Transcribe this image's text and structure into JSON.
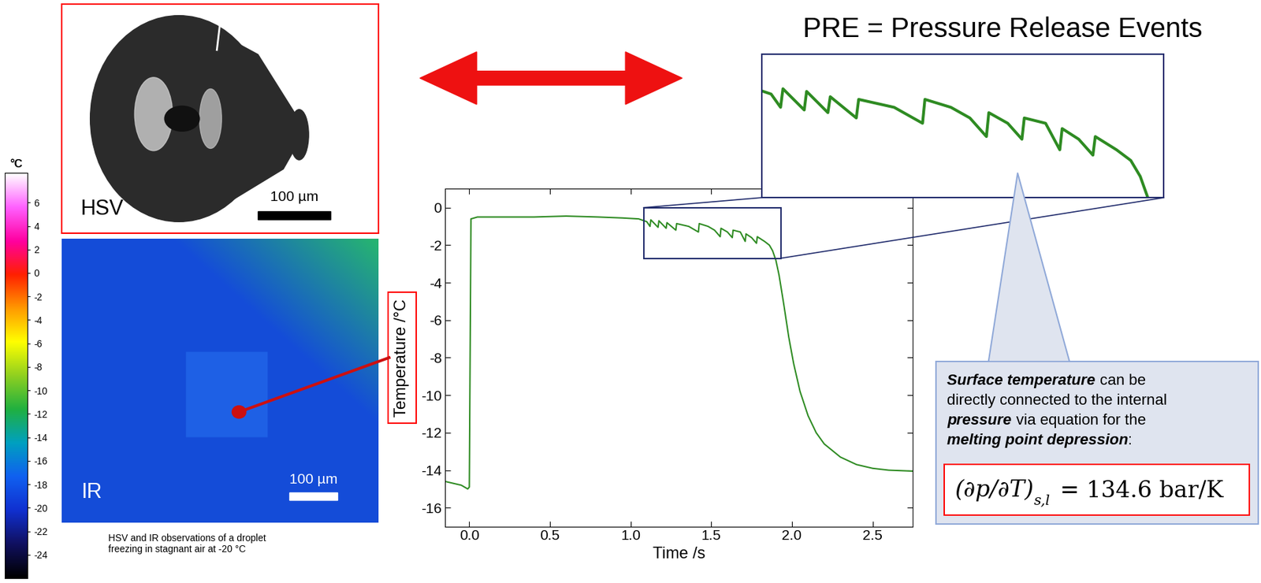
{
  "chart_data": {
    "type": "line",
    "x": [
      -0.15,
      -0.1,
      -0.05,
      -0.01,
      0.0,
      0.01,
      0.05,
      0.2,
      0.4,
      0.6,
      0.8,
      0.95,
      1.05,
      1.1,
      1.12,
      1.125,
      1.17,
      1.175,
      1.22,
      1.225,
      1.28,
      1.285,
      1.36,
      1.42,
      1.425,
      1.48,
      1.52,
      1.555,
      1.56,
      1.6,
      1.63,
      1.635,
      1.68,
      1.71,
      1.715,
      1.75,
      1.78,
      1.785,
      1.83,
      1.86,
      1.88,
      1.9,
      1.92,
      1.95,
      1.98,
      2.01,
      2.05,
      2.1,
      2.15,
      2.2,
      2.3,
      2.4,
      2.5,
      2.6,
      2.75
    ],
    "values": [
      -14.6,
      -14.7,
      -14.8,
      -15.0,
      -14.9,
      -0.6,
      -0.5,
      -0.5,
      -0.5,
      -0.45,
      -0.5,
      -0.55,
      -0.6,
      -0.75,
      -1.0,
      -0.65,
      -1.05,
      -0.7,
      -1.1,
      -0.8,
      -1.2,
      -0.85,
      -1.0,
      -1.3,
      -0.85,
      -1.0,
      -1.2,
      -1.55,
      -1.1,
      -1.3,
      -1.6,
      -1.2,
      -1.3,
      -1.8,
      -1.4,
      -1.6,
      -1.9,
      -1.55,
      -1.8,
      -2.0,
      -2.3,
      -2.8,
      -3.6,
      -5.2,
      -6.9,
      -8.3,
      -9.8,
      -11.1,
      -12.0,
      -12.6,
      -13.3,
      -13.7,
      -13.9,
      -14.0,
      -14.05
    ],
    "color": "#2e8b22",
    "xlabel": "Time /s",
    "ylabel": "Temperature /°C",
    "xlim": [
      -0.15,
      2.75
    ],
    "ylim": [
      -17,
      1
    ],
    "xticks": [
      {
        "value": 0,
        "label": "0.0"
      },
      {
        "value": 0.5,
        "label": "0.5"
      },
      {
        "value": 1,
        "label": "1.0"
      },
      {
        "value": 1.5,
        "label": "1.5"
      },
      {
        "value": 2,
        "label": "2.0"
      },
      {
        "value": 2.5,
        "label": "2.5"
      }
    ],
    "yticks": [
      0,
      -2,
      -4,
      -6,
      -8,
      -10,
      -12,
      -14,
      -16
    ]
  },
  "zoom": {
    "xlim": [
      1.08,
      1.93
    ],
    "ylim": [
      -2.7,
      0.0
    ]
  },
  "header": {
    "title": "PRE = Pressure Release Events"
  },
  "images": {
    "hsv": {
      "label": "HSV",
      "scale_bar": "100 µm"
    },
    "ir": {
      "label": "IR",
      "scale_bar": "100 µm"
    },
    "caption": "HSV and IR observations of a droplet\nfreezing in stagnant air at -20 °C"
  },
  "colorbar": {
    "label": "°C",
    "range": [
      -26,
      8.5
    ],
    "ticks": [
      6,
      4,
      2,
      0,
      -2,
      -4,
      -6,
      -8,
      -10,
      -12,
      -14,
      -16,
      -18,
      -20,
      -22,
      -24
    ]
  },
  "callout": {
    "lines": [
      [
        {
          "text": "Surface temperature",
          "emphasis": true
        },
        {
          "text": " can be"
        }
      ],
      [
        {
          "text": "directly connected to the internal"
        }
      ],
      [
        {
          "text": "pressure",
          "emphasis": true
        },
        {
          "text": " via equation for the"
        }
      ],
      [
        {
          "text": "melting point depression",
          "emphasis": true
        },
        {
          "text": ":"
        }
      ]
    ],
    "equation": {
      "lhs": "(∂p/∂T)",
      "subscript": "s,l",
      "rhs": "= 134.6 bar/K"
    }
  }
}
